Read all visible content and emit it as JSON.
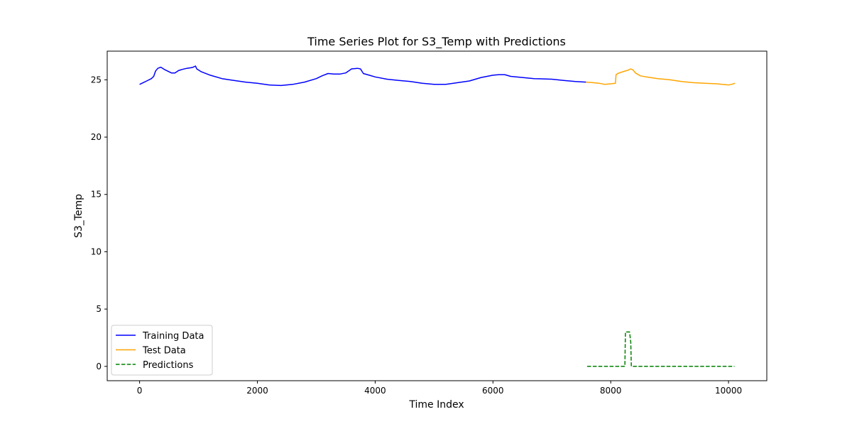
{
  "chart_data": {
    "type": "line",
    "title": "Time Series Plot for S3_Temp with Predictions",
    "xlabel": "Time Index",
    "ylabel": "S3_Temp",
    "xlim": [
      -550,
      10650
    ],
    "ylim": [
      -1.25,
      27.5
    ],
    "xticks": [
      0,
      2000,
      4000,
      6000,
      8000,
      10000
    ],
    "yticks": [
      0,
      5,
      10,
      15,
      20,
      25
    ],
    "grid": false,
    "legend_position": "lower-left",
    "series": [
      {
        "name": "Training Data",
        "color": "#0000ff",
        "dash": "solid",
        "points": [
          [
            0,
            24.6
          ],
          [
            60,
            24.75
          ],
          [
            120,
            24.9
          ],
          [
            200,
            25.1
          ],
          [
            240,
            25.3
          ],
          [
            270,
            25.75
          ],
          [
            310,
            26.0
          ],
          [
            360,
            26.1
          ],
          [
            420,
            25.9
          ],
          [
            480,
            25.75
          ],
          [
            540,
            25.6
          ],
          [
            600,
            25.6
          ],
          [
            660,
            25.8
          ],
          [
            720,
            25.9
          ],
          [
            800,
            26.0
          ],
          [
            870,
            26.05
          ],
          [
            910,
            26.1
          ],
          [
            950,
            26.2
          ],
          [
            970,
            25.95
          ],
          [
            1050,
            25.7
          ],
          [
            1200,
            25.4
          ],
          [
            1400,
            25.1
          ],
          [
            1600,
            24.95
          ],
          [
            1800,
            24.8
          ],
          [
            2000,
            24.7
          ],
          [
            2200,
            24.55
          ],
          [
            2400,
            24.5
          ],
          [
            2600,
            24.6
          ],
          [
            2800,
            24.8
          ],
          [
            3000,
            25.1
          ],
          [
            3100,
            25.35
          ],
          [
            3200,
            25.55
          ],
          [
            3300,
            25.5
          ],
          [
            3400,
            25.5
          ],
          [
            3500,
            25.6
          ],
          [
            3600,
            25.95
          ],
          [
            3700,
            26.0
          ],
          [
            3750,
            25.95
          ],
          [
            3800,
            25.55
          ],
          [
            3900,
            25.4
          ],
          [
            4000,
            25.25
          ],
          [
            4200,
            25.05
          ],
          [
            4400,
            24.95
          ],
          [
            4600,
            24.85
          ],
          [
            4800,
            24.7
          ],
          [
            5000,
            24.6
          ],
          [
            5200,
            24.6
          ],
          [
            5400,
            24.75
          ],
          [
            5600,
            24.9
          ],
          [
            5800,
            25.2
          ],
          [
            6000,
            25.4
          ],
          [
            6100,
            25.45
          ],
          [
            6200,
            25.45
          ],
          [
            6300,
            25.3
          ],
          [
            6500,
            25.2
          ],
          [
            6700,
            25.1
          ],
          [
            7000,
            25.05
          ],
          [
            7200,
            24.95
          ],
          [
            7400,
            24.85
          ],
          [
            7580,
            24.8
          ]
        ]
      },
      {
        "name": "Test Data",
        "color": "#ffa500",
        "dash": "solid",
        "points": [
          [
            7580,
            24.8
          ],
          [
            7700,
            24.75
          ],
          [
            7800,
            24.7
          ],
          [
            7900,
            24.6
          ],
          [
            8000,
            24.65
          ],
          [
            8080,
            24.7
          ],
          [
            8090,
            25.45
          ],
          [
            8120,
            25.55
          ],
          [
            8200,
            25.7
          ],
          [
            8300,
            25.85
          ],
          [
            8340,
            25.95
          ],
          [
            8380,
            25.85
          ],
          [
            8420,
            25.6
          ],
          [
            8500,
            25.35
          ],
          [
            8600,
            25.25
          ],
          [
            8800,
            25.1
          ],
          [
            9000,
            25.0
          ],
          [
            9200,
            24.85
          ],
          [
            9400,
            24.75
          ],
          [
            9600,
            24.7
          ],
          [
            9800,
            24.65
          ],
          [
            10000,
            24.55
          ],
          [
            10050,
            24.6
          ],
          [
            10110,
            24.7
          ]
        ]
      },
      {
        "name": "Predictions",
        "color": "#008000",
        "dash": "dashed",
        "points": [
          [
            7600,
            0
          ],
          [
            8240,
            0
          ],
          [
            8250,
            3
          ],
          [
            8320,
            3
          ],
          [
            8340,
            2.1
          ],
          [
            8350,
            0
          ],
          [
            10100,
            0
          ]
        ]
      }
    ]
  }
}
